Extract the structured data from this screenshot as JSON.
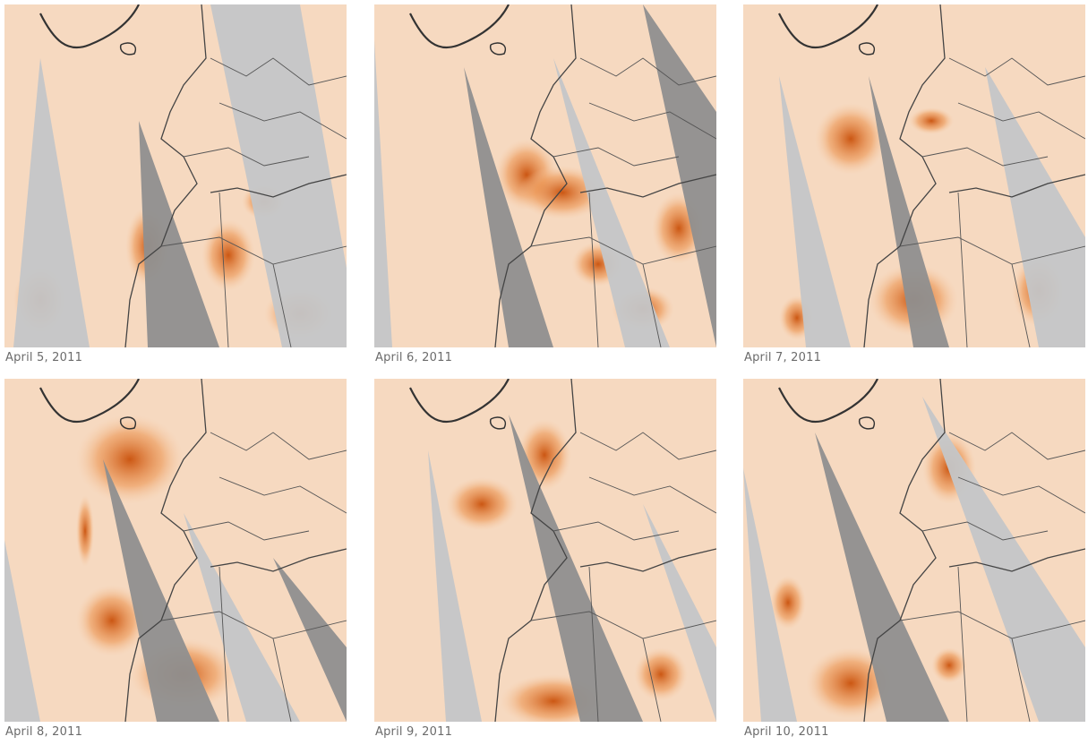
{
  "panels": [
    {
      "caption": "April 5, 2011"
    },
    {
      "caption": "April 6, 2011"
    },
    {
      "caption": "April 7, 2011"
    },
    {
      "caption": "April 8, 2011"
    },
    {
      "caption": "April 9, 2011"
    },
    {
      "caption": "April 10, 2011"
    }
  ]
}
